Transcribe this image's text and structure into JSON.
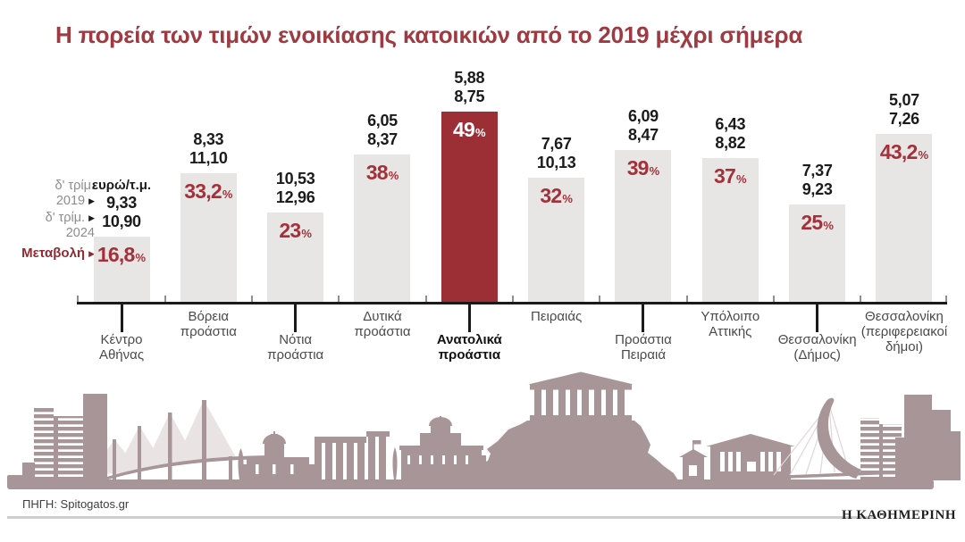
{
  "title": "Η πορεία των τιμών ενοικίασης κατοικιών από το 2019 μέχρι σήμερα",
  "legend": {
    "arrow_icon": "▶",
    "rows": [
      {
        "line1": "δ' τρίμ.",
        "line2": "2019"
      },
      {
        "line1": "δ' τρίμ.",
        "line2": "2024"
      },
      {
        "line1": "Μεταβολή"
      }
    ]
  },
  "chart_data": {
    "type": "bar",
    "title": "Η πορεία των τιμών ενοικίασης κατοικιών από το 2019 μέχρι σήμερα",
    "unit": "ευρώ/τ.μ.",
    "value_suffix": "%",
    "ylabel": "Μεταβολή %",
    "legend_position": "left",
    "grid": false,
    "bar_plotted_series": "Μεταβολή %",
    "highlight_category": "Ανατολικά προάστια",
    "categories": [
      "Κέντρο Αθήνας",
      "Βόρεια προάστια",
      "Νότια προάστια",
      "Δυτικά προάστια",
      "Ανατολικά προάστια",
      "Πειραιάς",
      "Προάστια Πειραιά",
      "Υπόλοιπο Αττικής",
      "Θεσσαλονίκη (Δήμος)",
      "Θεσσαλονίκη (περιφερειακοί δήμοι)"
    ],
    "series": [
      {
        "name": "δ' τρίμ. 2019 (ευρώ/τ.μ.)",
        "values": [
          9.33,
          8.33,
          10.53,
          6.05,
          5.88,
          7.67,
          6.09,
          6.43,
          7.37,
          5.07
        ]
      },
      {
        "name": "δ' τρίμ. 2024 (ευρώ/τ.μ.)",
        "values": [
          10.9,
          11.1,
          12.96,
          8.37,
          8.75,
          10.13,
          8.47,
          8.82,
          9.23,
          7.26
        ]
      },
      {
        "name": "Μεταβολή %",
        "values": [
          16.8,
          33.2,
          23,
          38,
          49,
          32,
          39,
          37,
          25,
          43.2
        ]
      }
    ],
    "regions": [
      {
        "label": [
          "Κέντρο",
          "Αθήνας"
        ],
        "v2019": "9,33",
        "v2024": "10,90",
        "pct_label": "16,8",
        "pct": 16.8,
        "highlight": false,
        "row": "lower"
      },
      {
        "label": [
          "Βόρεια",
          "προάστια"
        ],
        "v2019": "8,33",
        "v2024": "11,10",
        "pct_label": "33,2",
        "pct": 33.2,
        "highlight": false,
        "row": "upper"
      },
      {
        "label": [
          "Νότια",
          "προάστια"
        ],
        "v2019": "10,53",
        "v2024": "12,96",
        "pct_label": "23",
        "pct": 23,
        "highlight": false,
        "row": "lower"
      },
      {
        "label": [
          "Δυτικά",
          "προάστια"
        ],
        "v2019": "6,05",
        "v2024": "8,37",
        "pct_label": "38",
        "pct": 38,
        "highlight": false,
        "row": "upper"
      },
      {
        "label": [
          "Ανατολικά",
          "προάστια"
        ],
        "v2019": "5,88",
        "v2024": "8,75",
        "pct_label": "49",
        "pct": 49,
        "highlight": true,
        "row": "lower"
      },
      {
        "label": [
          "Πειραιάς"
        ],
        "v2019": "7,67",
        "v2024": "10,13",
        "pct_label": "32",
        "pct": 32,
        "highlight": false,
        "row": "upper"
      },
      {
        "label": [
          "Προάστια",
          "Πειραιά"
        ],
        "v2019": "6,09",
        "v2024": "8,47",
        "pct_label": "39",
        "pct": 39,
        "highlight": false,
        "row": "lower"
      },
      {
        "label": [
          "Υπόλοιπο",
          "Αττικής"
        ],
        "v2019": "6,43",
        "v2024": "8,82",
        "pct_label": "37",
        "pct": 37,
        "highlight": false,
        "row": "upper"
      },
      {
        "label": [
          "Θεσσαλονίκη",
          "(Δήμος)"
        ],
        "v2019": "7,37",
        "v2024": "9,23",
        "pct_label": "25",
        "pct": 25,
        "highlight": false,
        "row": "lower"
      },
      {
        "label": [
          "Θεσσαλονίκη",
          "(περιφερειακοί",
          "δήμοι)"
        ],
        "v2019": "5,07",
        "v2024": "7,26",
        "pct_label": "43,2",
        "pct": 43.2,
        "highlight": false,
        "row": "upper"
      }
    ]
  },
  "source": "ΠΗΓΗ: Spitogatos.gr",
  "brand": "Η ΚΑΘΗΜΕΡΙΝΗ",
  "colors": {
    "title_red": "#9e3a41",
    "percent_red": "#a4313a",
    "highlight_bar": "#9c2f36",
    "bar_gray": "#e7e6e5",
    "skyline": "#a89598",
    "legend_gray": "#8d8d8d",
    "change_red": "#8e2b33",
    "axis_black": "#1a1a1a",
    "rule_gray": "#cfcecd"
  }
}
